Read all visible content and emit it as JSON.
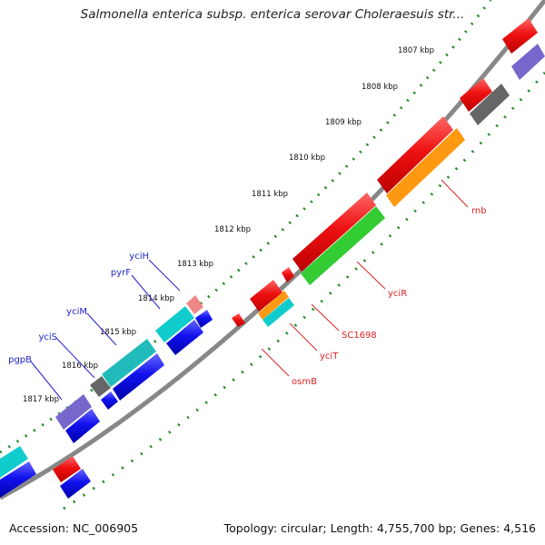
{
  "title": "Salmonella enterica subsp. enterica serovar Choleraesuis str...",
  "footer": {
    "accession": "Accession: NC_006905",
    "stats": "Topology: circular; Length: 4,755,700 bp; Genes: 4,516"
  },
  "ticks": [
    {
      "label": "1807 kbp",
      "pos": 0
    },
    {
      "label": "1808 kbp",
      "pos": 1
    },
    {
      "label": "1809 kbp",
      "pos": 2
    },
    {
      "label": "1810 kbp",
      "pos": 3
    },
    {
      "label": "1811 kbp",
      "pos": 4
    },
    {
      "label": "1812 kbp",
      "pos": 5
    },
    {
      "label": "1813 kbp",
      "pos": 6
    },
    {
      "label": "1814 kbp",
      "pos": 7
    },
    {
      "label": "1815 kbp",
      "pos": 8
    },
    {
      "label": "1816 kbp",
      "pos": 9
    },
    {
      "label": "1817 kbp",
      "pos": 10
    }
  ],
  "genes": [
    {
      "name": "rnb",
      "color": "#dd2222",
      "side": "inner"
    },
    {
      "name": "yciR",
      "color": "#dd2222",
      "side": "inner"
    },
    {
      "name": "SC1698",
      "color": "#dd2222",
      "side": "inner"
    },
    {
      "name": "yciT",
      "color": "#dd2222",
      "side": "inner"
    },
    {
      "name": "osmB",
      "color": "#dd2222",
      "side": "inner"
    },
    {
      "name": "yciH",
      "color": "#2222cc",
      "side": "outer"
    },
    {
      "name": "pyrF",
      "color": "#2222cc",
      "side": "outer"
    },
    {
      "name": "yciM",
      "color": "#2222cc",
      "side": "outer"
    },
    {
      "name": "yciS",
      "color": "#2222cc",
      "side": "outer"
    },
    {
      "name": "pgpB",
      "color": "#2222cc",
      "side": "outer"
    }
  ],
  "colors": {
    "backbone": "#888888",
    "tick_green": "#228822",
    "red": "#ee1111",
    "blue": "#1111ee",
    "cyan": "#11cccc",
    "teal": "#22bbbb",
    "green": "#33cc33",
    "orange": "#ff9911",
    "purple": "#7766cc",
    "gray": "#666666",
    "pink": "#ee8888"
  }
}
